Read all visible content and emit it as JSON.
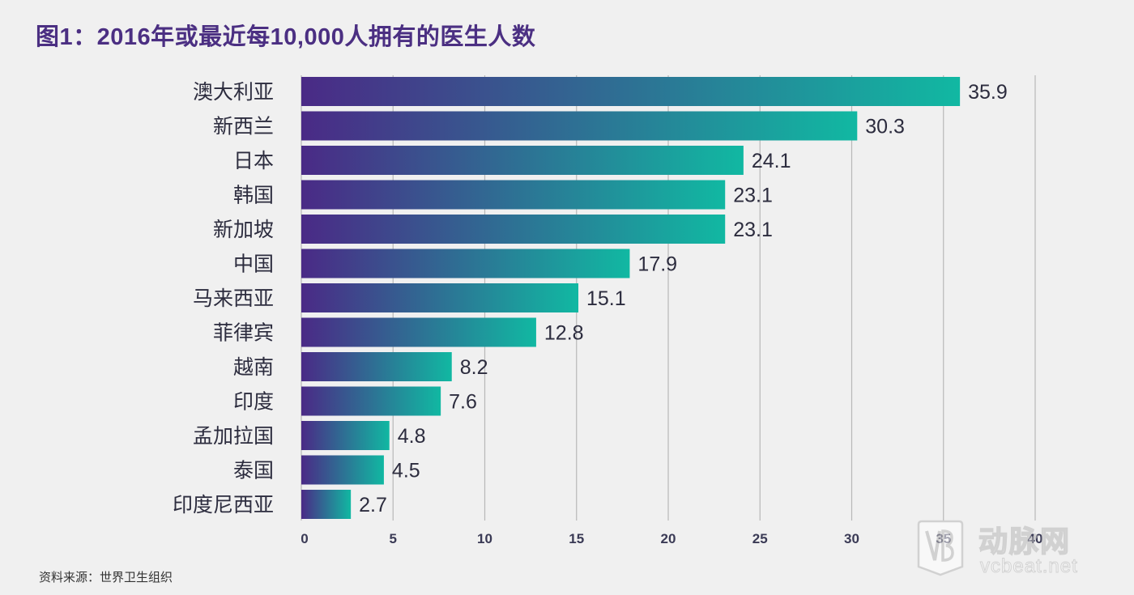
{
  "title": "图1：2016年或最近每10,000人拥有的医生人数",
  "source": "资料来源：世界卫生组织",
  "watermark": {
    "cn": "动脉网",
    "en": "vcbeat.net"
  },
  "colors": {
    "bar_start": "#4a2a86",
    "bar_end": "#11b8a2",
    "title": "#4b2f82",
    "grid": "#b8b8b8",
    "background": "#f0f0f0"
  },
  "chart_data": {
    "type": "bar",
    "orientation": "horizontal",
    "categories": [
      "澳大利亚",
      "新西兰",
      "日本",
      "韩国",
      "新加坡",
      "中国",
      "马来西亚",
      "菲律宾",
      "越南",
      "印度",
      "孟加拉国",
      "泰国",
      "印度尼西亚"
    ],
    "values": [
      35.9,
      30.3,
      24.1,
      23.1,
      23.1,
      17.9,
      15.1,
      12.8,
      8.2,
      7.6,
      4.8,
      4.5,
      2.7
    ],
    "value_labels": [
      "35.9",
      "30.3",
      "24.1",
      "23.1",
      "23.1",
      "17.9",
      "15.1",
      "12.8",
      "8.2",
      "7.6",
      "4.8",
      "4.5",
      "2.7"
    ],
    "xlim": [
      0,
      40
    ],
    "xticks": [
      0,
      5,
      10,
      15,
      20,
      25,
      30,
      35,
      40
    ],
    "grid": "vertical",
    "xlabel": "",
    "ylabel": ""
  }
}
